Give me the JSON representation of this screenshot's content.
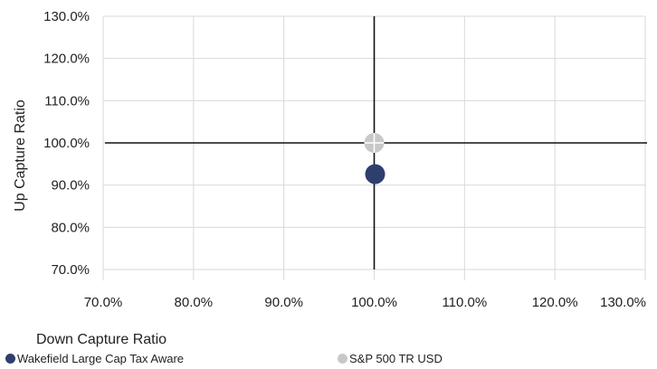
{
  "chart_data": {
    "type": "scatter",
    "xlabel": "Down Capture Ratio",
    "ylabel": "Up Capture Ratio",
    "xlim": [
      70,
      130
    ],
    "ylim": [
      70,
      130
    ],
    "x_ticks": [
      "70.0%",
      "80.0%",
      "90.0%",
      "100.0%",
      "110.0%",
      "120.0%",
      "130.0%"
    ],
    "y_ticks": [
      "70.0%",
      "80.0%",
      "90.0%",
      "100.0%",
      "110.0%",
      "120.0%",
      "130.0%"
    ],
    "grid": true,
    "reference_lines": {
      "x": 100,
      "y": 100
    },
    "legend_position": "bottom",
    "series": [
      {
        "name": "Wakefield Large Cap Tax Aware",
        "color": "#2e3f6e",
        "marker": "circle",
        "points": [
          {
            "x": 100.1,
            "y": 92.6
          }
        ]
      },
      {
        "name": "S&P 500 TR USD",
        "color": "#c8c8c8",
        "marker": "circle-cross",
        "points": [
          {
            "x": 100.0,
            "y": 100.0
          }
        ]
      }
    ]
  }
}
